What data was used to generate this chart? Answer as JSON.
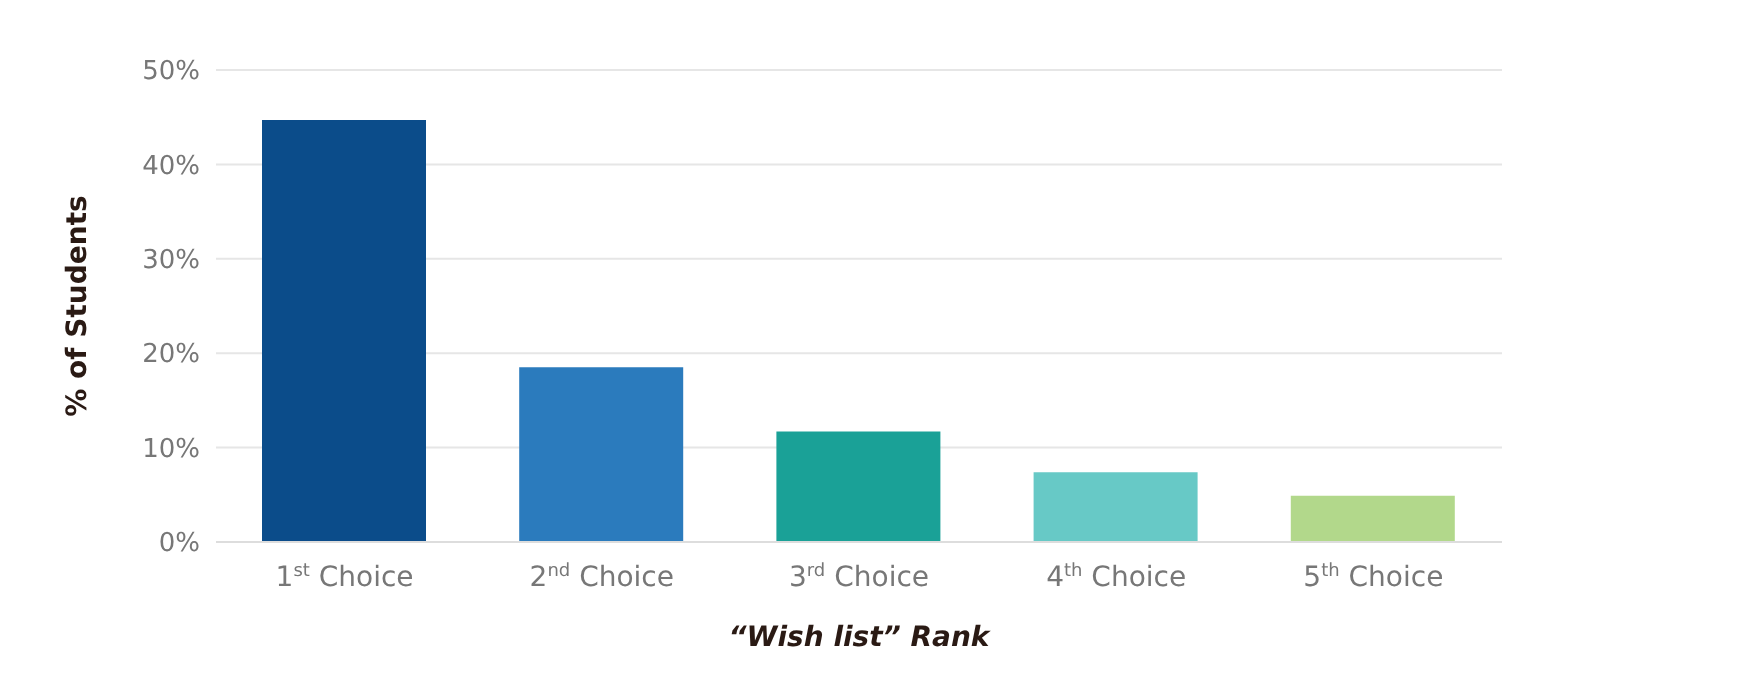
{
  "chart_data": {
    "type": "bar",
    "categories": [
      "1$^{st}$ Choice",
      "2$^{nd}$ Choice",
      "3$^{rd}$ Choice",
      "4$^{th}$ Choice",
      "5$^{th}$ Choice"
    ],
    "values": [
      44.7,
      18.5,
      11.7,
      7.4,
      4.9
    ],
    "colors": [
      "#0b4c8a",
      "#2b7bbd",
      "#1aa197",
      "#67c9c6",
      "#b2d88b"
    ],
    "ylabel": "% of Students",
    "xlabel": "“Wish list” Rank",
    "ylim": [
      0,
      50
    ],
    "yticks": [
      {
        "value": 0,
        "label": "0%"
      },
      {
        "value": 10,
        "label": "10%"
      },
      {
        "value": 20,
        "label": "20%"
      },
      {
        "value": 30,
        "label": "30%"
      },
      {
        "value": 40,
        "label": "40%"
      },
      {
        "value": 50,
        "label": "50%"
      }
    ],
    "grid": "y"
  }
}
